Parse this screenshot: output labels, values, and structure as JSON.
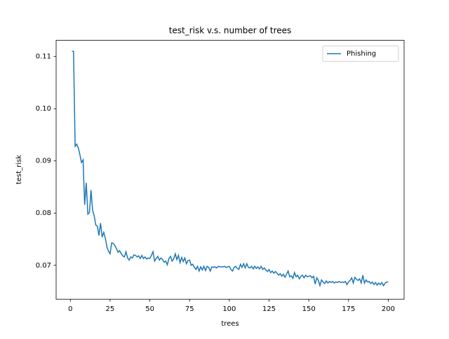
{
  "chart_data": {
    "type": "line",
    "title": "test_risk v.s. number of trees",
    "x_label": "trees",
    "y_label": "test_risk",
    "x": [
      1,
      2,
      3,
      4,
      5,
      6,
      7,
      8,
      9,
      10,
      11,
      12,
      13,
      14,
      15,
      16,
      17,
      18,
      19,
      20,
      21,
      22,
      23,
      24,
      25,
      26,
      27,
      28,
      29,
      30,
      31,
      32,
      33,
      34,
      35,
      36,
      37,
      38,
      39,
      40,
      41,
      42,
      43,
      44,
      45,
      46,
      47,
      48,
      49,
      50,
      51,
      52,
      53,
      54,
      55,
      56,
      57,
      58,
      59,
      60,
      61,
      62,
      63,
      64,
      65,
      66,
      67,
      68,
      69,
      70,
      71,
      72,
      73,
      74,
      75,
      76,
      77,
      78,
      79,
      80,
      81,
      82,
      83,
      84,
      85,
      86,
      87,
      88,
      89,
      90,
      91,
      92,
      93,
      94,
      95,
      96,
      97,
      98,
      99,
      100,
      101,
      102,
      103,
      104,
      105,
      106,
      107,
      108,
      109,
      110,
      111,
      112,
      113,
      114,
      115,
      116,
      117,
      118,
      119,
      120,
      121,
      122,
      123,
      124,
      125,
      126,
      127,
      128,
      129,
      130,
      131,
      132,
      133,
      134,
      135,
      136,
      137,
      138,
      139,
      140,
      141,
      142,
      143,
      144,
      145,
      146,
      147,
      148,
      149,
      150,
      151,
      152,
      153,
      154,
      155,
      156,
      157,
      158,
      159,
      160,
      161,
      162,
      163,
      164,
      165,
      166,
      167,
      168,
      169,
      170,
      171,
      172,
      173,
      174,
      175,
      176,
      177,
      178,
      179,
      180,
      181,
      182,
      183,
      184,
      185,
      186,
      187,
      188,
      189,
      190,
      191,
      192,
      193,
      194,
      195,
      196,
      197,
      198,
      199,
      200
    ],
    "series": [
      {
        "name": "Phishing",
        "color": "#1f77b4",
        "values": [
          0.111,
          0.111,
          0.0928,
          0.0932,
          0.0925,
          0.0912,
          0.0897,
          0.0902,
          0.0816,
          0.0858,
          0.0798,
          0.0801,
          0.0844,
          0.0805,
          0.0795,
          0.0777,
          0.0775,
          0.0757,
          0.0781,
          0.0754,
          0.0763,
          0.0752,
          0.0735,
          0.0727,
          0.0722,
          0.0743,
          0.0742,
          0.0738,
          0.0732,
          0.0725,
          0.0728,
          0.0722,
          0.0718,
          0.0716,
          0.0726,
          0.0714,
          0.071,
          0.0716,
          0.0714,
          0.072,
          0.0719,
          0.0716,
          0.0718,
          0.0713,
          0.0719,
          0.0713,
          0.0716,
          0.0712,
          0.0714,
          0.0713,
          0.0719,
          0.0726,
          0.0708,
          0.0713,
          0.0717,
          0.071,
          0.0714,
          0.0711,
          0.0706,
          0.0708,
          0.0701,
          0.0713,
          0.0717,
          0.0708,
          0.0712,
          0.0722,
          0.0711,
          0.0719,
          0.0705,
          0.0715,
          0.0707,
          0.0714,
          0.0703,
          0.0709,
          0.071,
          0.07,
          0.0702,
          0.0696,
          0.0692,
          0.0698,
          0.0689,
          0.0697,
          0.0691,
          0.0698,
          0.069,
          0.0698,
          0.0696,
          0.0689,
          0.0697,
          0.0696,
          0.0697,
          0.0695,
          0.0698,
          0.0697,
          0.0697,
          0.0697,
          0.0698,
          0.0696,
          0.0697,
          0.0698,
          0.0692,
          0.0689,
          0.0696,
          0.0698,
          0.0694,
          0.0692,
          0.0702,
          0.0696,
          0.0703,
          0.0695,
          0.0703,
          0.0696,
          0.0695,
          0.0698,
          0.0693,
          0.0698,
          0.0694,
          0.0697,
          0.0693,
          0.0698,
          0.0692,
          0.0695,
          0.0691,
          0.0688,
          0.0692,
          0.0686,
          0.0689,
          0.0685,
          0.0688,
          0.0685,
          0.0681,
          0.0684,
          0.0679,
          0.0683,
          0.0677,
          0.0683,
          0.0689,
          0.0678,
          0.068,
          0.0675,
          0.0686,
          0.0678,
          0.0681,
          0.0674,
          0.0679,
          0.0681,
          0.0676,
          0.0681,
          0.0678,
          0.0679,
          0.068,
          0.0676,
          0.0679,
          0.0664,
          0.0676,
          0.0671,
          0.0661,
          0.0672,
          0.0668,
          0.0665,
          0.067,
          0.0666,
          0.0669,
          0.0667,
          0.0669,
          0.0666,
          0.0668,
          0.0667,
          0.0669,
          0.0667,
          0.0668,
          0.0667,
          0.0669,
          0.0663,
          0.0668,
          0.0671,
          0.0676,
          0.0666,
          0.0677,
          0.0673,
          0.0671,
          0.0674,
          0.0666,
          0.0681,
          0.0666,
          0.0672,
          0.0668,
          0.0669,
          0.0665,
          0.0668,
          0.0663,
          0.0667,
          0.0662,
          0.0666,
          0.0663,
          0.0667,
          0.0661,
          0.0666,
          0.0668,
          0.0668
        ]
      }
    ],
    "xlim": [
      -8.95,
      209.95
    ],
    "ylim": [
      0.0635,
      0.1131
    ],
    "xticks": [
      0,
      25,
      50,
      75,
      100,
      125,
      150,
      175,
      200
    ],
    "yticks": [
      0.07,
      0.08,
      0.09,
      {
        "value": 0.1,
        "label": "0.10"
      },
      0.11
    ],
    "legend": "upper right"
  }
}
